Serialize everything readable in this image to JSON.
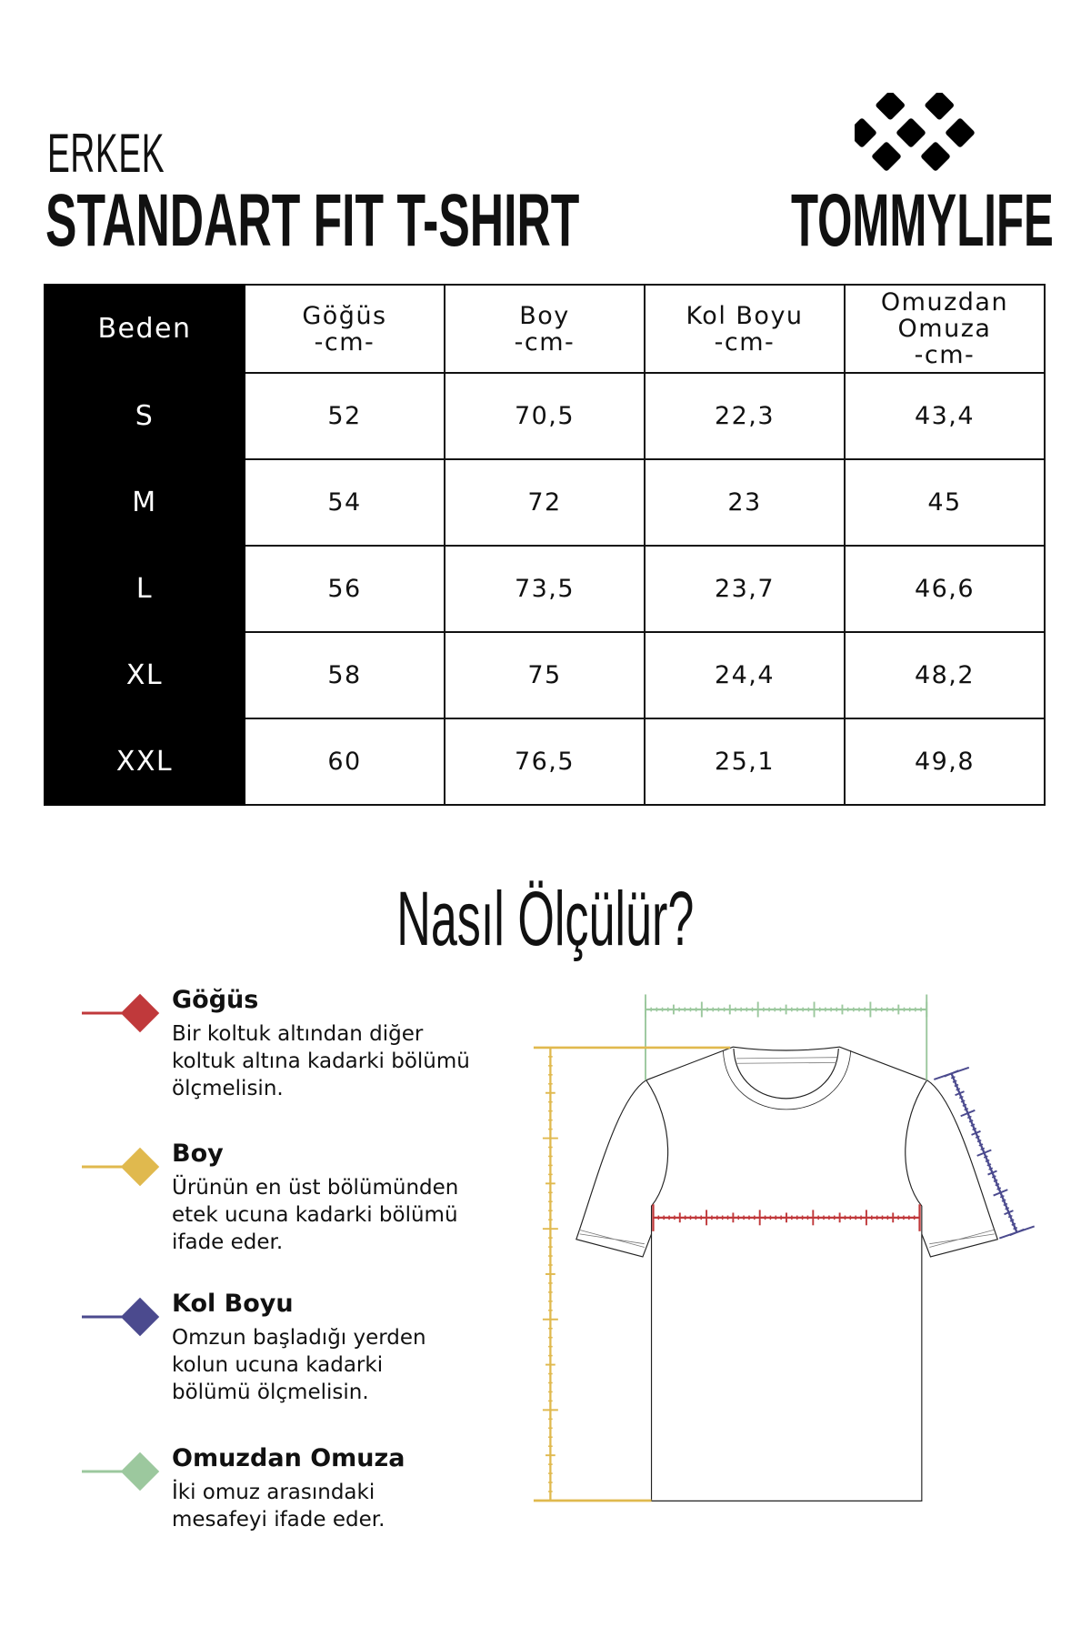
{
  "header": {
    "subtitle": "ERKEK",
    "title": "STANDART FIT T-SHIRT",
    "brand": "TOMMYLIFE"
  },
  "table": {
    "headers": [
      {
        "l1": "Beden",
        "l2": "",
        "l3": ""
      },
      {
        "l1": "Göğüs",
        "l2": "-cm-",
        "l3": ""
      },
      {
        "l1": "Boy",
        "l2": "-cm-",
        "l3": ""
      },
      {
        "l1": "Kol Boyu",
        "l2": "-cm-",
        "l3": ""
      },
      {
        "l1": "Omuzdan",
        "l2": "Omuza",
        "l3": "-cm-"
      }
    ],
    "rows": [
      [
        "S",
        "52",
        "70,5",
        "22,3",
        "43,4"
      ],
      [
        "M",
        "54",
        "72",
        "23",
        "45"
      ],
      [
        "L",
        "56",
        "73,5",
        "23,7",
        "46,6"
      ],
      [
        "XL",
        "58",
        "75",
        "24,4",
        "48,2"
      ],
      [
        "XXL",
        "60",
        "76,5",
        "25,1",
        "49,8"
      ]
    ]
  },
  "howto": {
    "title": "Nasıl Ölçülür?"
  },
  "legend": [
    {
      "title": "Göğüs",
      "desc": [
        "Bir koltuk altından diğer",
        "koltuk altına kadarki bölümü",
        "ölçmelisin."
      ],
      "color": "#c0393b"
    },
    {
      "title": "Boy",
      "desc": [
        "Ürünün en üst bölümünden",
        "etek ucuna kadarki bölümü",
        "ifade eder."
      ],
      "color": "#e0b94e"
    },
    {
      "title": "Kol Boyu",
      "desc": [
        "Omzun başladığı yerden",
        "kolun ucuna kadarki",
        "bölümü ölçmelisin."
      ],
      "color": "#4b4a8e"
    },
    {
      "title": "Omuzdan Omuza",
      "desc": [
        "İki omuz arasındaki",
        "mesafeyi ifade eder."
      ],
      "color": "#9cc89e"
    }
  ]
}
